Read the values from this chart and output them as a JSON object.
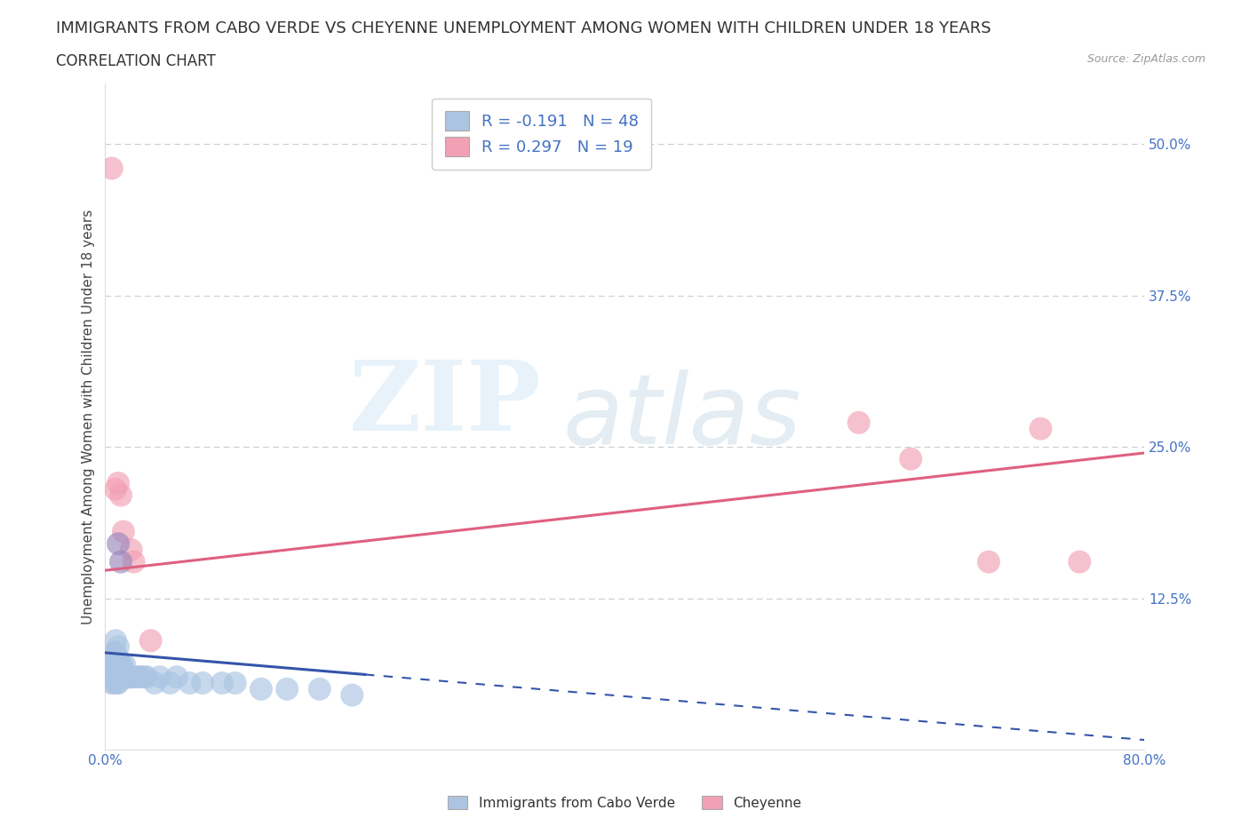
{
  "title": "IMMIGRANTS FROM CABO VERDE VS CHEYENNE UNEMPLOYMENT AMONG WOMEN WITH CHILDREN UNDER 18 YEARS",
  "subtitle": "CORRELATION CHART",
  "source": "Source: ZipAtlas.com",
  "ylabel": "Unemployment Among Women with Children Under 18 years",
  "xlim": [
    0.0,
    0.8
  ],
  "ylim": [
    0.0,
    0.55
  ],
  "yticks": [
    0.0,
    0.125,
    0.25,
    0.375,
    0.5
  ],
  "ytick_labels": [
    "",
    "12.5%",
    "25.0%",
    "37.5%",
    "50.0%"
  ],
  "xticks": [
    0.0,
    0.1,
    0.2,
    0.3,
    0.4,
    0.5,
    0.6,
    0.7,
    0.8
  ],
  "xtick_labels": [
    "0.0%",
    "",
    "",
    "",
    "",
    "",
    "",
    "",
    "80.0%"
  ],
  "blue_R": -0.191,
  "blue_N": 48,
  "pink_R": 0.297,
  "pink_N": 19,
  "blue_color": "#aac4e2",
  "pink_color": "#f2a0b4",
  "blue_line_color": "#3355aa",
  "pink_line_color": "#e06080",
  "purple_color": "#9988bb",
  "legend_label_blue": "Immigrants from Cabo Verde",
  "legend_label_pink": "Cheyenne",
  "watermark_zip": "ZIP",
  "watermark_atlas": "atlas",
  "background_color": "#ffffff",
  "grid_color": "#cccccc",
  "title_fontsize": 13,
  "subtitle_fontsize": 12,
  "axis_label_fontsize": 11,
  "tick_fontsize": 11,
  "legend_fontsize": 13,
  "blue_scatter_x": [
    0.005,
    0.006,
    0.006,
    0.007,
    0.007,
    0.007,
    0.008,
    0.008,
    0.008,
    0.008,
    0.009,
    0.009,
    0.009,
    0.01,
    0.01,
    0.01,
    0.01,
    0.011,
    0.011,
    0.012,
    0.012,
    0.013,
    0.013,
    0.014,
    0.015,
    0.015,
    0.016,
    0.017,
    0.018,
    0.019,
    0.02,
    0.022,
    0.025,
    0.027,
    0.03,
    0.032,
    0.038,
    0.042,
    0.05,
    0.055,
    0.065,
    0.075,
    0.09,
    0.1,
    0.12,
    0.14,
    0.165,
    0.19
  ],
  "blue_scatter_y": [
    0.055,
    0.06,
    0.07,
    0.055,
    0.065,
    0.08,
    0.06,
    0.07,
    0.08,
    0.09,
    0.055,
    0.065,
    0.075,
    0.055,
    0.065,
    0.075,
    0.085,
    0.06,
    0.07,
    0.06,
    0.07,
    0.06,
    0.07,
    0.06,
    0.06,
    0.07,
    0.06,
    0.06,
    0.06,
    0.06,
    0.06,
    0.06,
    0.06,
    0.06,
    0.06,
    0.06,
    0.055,
    0.06,
    0.055,
    0.06,
    0.055,
    0.055,
    0.055,
    0.055,
    0.05,
    0.05,
    0.05,
    0.045
  ],
  "pink_scatter_x": [
    0.005,
    0.008,
    0.01,
    0.012,
    0.014,
    0.02,
    0.022,
    0.035,
    0.58,
    0.62,
    0.68,
    0.72,
    0.75
  ],
  "pink_scatter_y": [
    0.48,
    0.215,
    0.22,
    0.21,
    0.18,
    0.165,
    0.155,
    0.09,
    0.27,
    0.24,
    0.155,
    0.265,
    0.155
  ],
  "purple_scatter_x": [
    0.01,
    0.012
  ],
  "purple_scatter_y": [
    0.17,
    0.155
  ],
  "pink_line_start_x": 0.0,
  "pink_line_start_y": 0.148,
  "pink_line_end_x": 0.8,
  "pink_line_end_y": 0.245,
  "blue_line_solid_start_x": 0.0,
  "blue_line_solid_start_y": 0.08,
  "blue_line_solid_end_x": 0.2,
  "blue_line_solid_end_y": 0.062,
  "blue_line_dash_end_x": 0.8,
  "blue_line_dash_end_y": 0.008
}
